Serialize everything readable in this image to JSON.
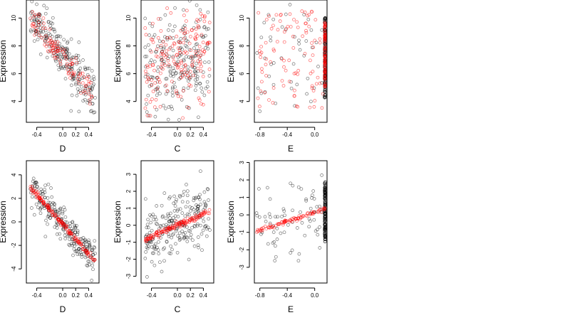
{
  "chart_data": [
    {
      "type": "scatter",
      "xlabel": "D",
      "ylabel": "Expression",
      "xlim": [
        -0.56,
        0.56
      ],
      "ylim": [
        2.5,
        11.3
      ],
      "xticks": [
        -0.4,
        0.0,
        0.2,
        0.4
      ],
      "xtick_labels": [
        "-0.4",
        "0.0",
        "0.2",
        "0.4"
      ],
      "yticks": [
        4,
        6,
        8,
        10
      ],
      "ytick_labels": [
        "4",
        "6",
        "8",
        "10"
      ],
      "series": [
        {
          "color": "#000000",
          "model": {
            "kind": "linear",
            "intercept": 7.3,
            "slope": -6.0,
            "xmin": -0.5,
            "xmax": 0.5,
            "spread": 0.85,
            "n": 240,
            "seed": 11
          }
        },
        {
          "color": "#ff0000",
          "model": {
            "kind": "linear",
            "intercept": 7.2,
            "slope": -5.8,
            "xmin": -0.5,
            "xmax": 0.45,
            "spread": 0.45,
            "n": 110,
            "seed": 12
          }
        }
      ]
    },
    {
      "type": "scatter",
      "xlabel": "C",
      "ylabel": "Expression",
      "xlim": [
        -0.56,
        0.56
      ],
      "ylim": [
        2.5,
        11.3
      ],
      "xticks": [
        -0.4,
        0.0,
        0.2,
        0.4
      ],
      "xtick_labels": [
        "-0.4",
        "0.0",
        "0.2",
        "0.4"
      ],
      "yticks": [
        4,
        6,
        8,
        10
      ],
      "ytick_labels": [
        "4",
        "6",
        "8",
        "10"
      ],
      "series": [
        {
          "color": "#000000",
          "model": {
            "kind": "linear",
            "intercept": 7.0,
            "slope": 1.5,
            "xmin": -0.5,
            "xmax": 0.5,
            "spread": 1.9,
            "n": 220,
            "seed": 21
          }
        },
        {
          "color": "#ff0000",
          "model": {
            "kind": "linear",
            "intercept": 7.0,
            "slope": 1.2,
            "xmin": -0.5,
            "xmax": 0.5,
            "spread": 1.7,
            "n": 180,
            "seed": 22
          }
        }
      ]
    },
    {
      "type": "scatter",
      "xlabel": "E",
      "ylabel": "Expression",
      "xlim": [
        -0.88,
        0.18
      ],
      "ylim": [
        2.5,
        11.3
      ],
      "xticks": [
        -0.8,
        -0.4,
        0.0
      ],
      "xtick_labels": [
        "-0.8",
        "-0.4",
        "0.0"
      ],
      "yticks": [
        4,
        6,
        8,
        10
      ],
      "ytick_labels": [
        "4",
        "6",
        "8",
        "10"
      ],
      "series": [
        {
          "color": "#000000",
          "model": {
            "kind": "cluster",
            "x": 0.15,
            "xjit": 0.006,
            "ymin": 4.2,
            "ymax": 10.1,
            "n": 140,
            "seed": 31
          }
        },
        {
          "color": "#000000",
          "model": {
            "kind": "uniform",
            "xmin": -0.85,
            "xmax": 0.12,
            "ymin": 3.0,
            "ymax": 11.0,
            "n": 45,
            "seed": 32
          }
        },
        {
          "color": "#ff0000",
          "model": {
            "kind": "uniform",
            "xmin": -0.85,
            "xmax": 0.12,
            "ymin": 3.5,
            "ymax": 10.5,
            "n": 95,
            "seed": 33
          }
        },
        {
          "color": "#ff0000",
          "model": {
            "kind": "cluster",
            "x": 0.15,
            "xjit": 0.004,
            "ymin": 5.0,
            "ymax": 9.8,
            "n": 90,
            "seed": 34
          }
        }
      ]
    },
    {
      "type": "scatter",
      "xlabel": "D",
      "ylabel": "Expression",
      "xlim": [
        -0.56,
        0.56
      ],
      "ylim": [
        -5.2,
        5.2
      ],
      "xticks": [
        -0.4,
        0.0,
        0.2,
        0.4
      ],
      "xtick_labels": [
        "-0.4",
        "0.0",
        "0.2",
        "0.4"
      ],
      "yticks": [
        -4,
        -2,
        0,
        2,
        4
      ],
      "ytick_labels": [
        "-4",
        "-2",
        "0",
        "2",
        "4"
      ],
      "series": [
        {
          "color": "#000000",
          "model": {
            "kind": "linear",
            "intercept": -0.2,
            "slope": -6.4,
            "xmin": -0.5,
            "xmax": 0.5,
            "spread": 0.75,
            "n": 240,
            "seed": 41
          }
        },
        {
          "color": "#ff0000",
          "model": {
            "kind": "linear",
            "intercept": -0.2,
            "slope": -6.3,
            "xmin": -0.5,
            "xmax": 0.5,
            "spread": 0.12,
            "n": 150,
            "seed": 42
          }
        }
      ]
    },
    {
      "type": "scatter",
      "xlabel": "C",
      "ylabel": "Expression",
      "xlim": [
        -0.56,
        0.56
      ],
      "ylim": [
        -3.4,
        3.8
      ],
      "xticks": [
        -0.4,
        0.0,
        0.2,
        0.4
      ],
      "xtick_labels": [
        "-0.4",
        "0.0",
        "0.2",
        "0.4"
      ],
      "yticks": [
        -3,
        -2,
        -1,
        0,
        1,
        2,
        3
      ],
      "ytick_labels": [
        "-3",
        "-2",
        "-1",
        "0",
        "1",
        "2",
        "3"
      ],
      "series": [
        {
          "color": "#000000",
          "model": {
            "kind": "linear",
            "intercept": 0.0,
            "slope": 1.7,
            "xmin": -0.5,
            "xmax": 0.5,
            "spread": 0.9,
            "n": 230,
            "seed": 51
          }
        },
        {
          "color": "#ff0000",
          "model": {
            "kind": "linear",
            "intercept": 0.0,
            "slope": 1.7,
            "xmin": -0.5,
            "xmax": 0.5,
            "spread": 0.08,
            "n": 140,
            "seed": 52
          }
        }
      ]
    },
    {
      "type": "scatter",
      "xlabel": "E",
      "ylabel": "Expression",
      "xlim": [
        -0.88,
        0.18
      ],
      "ylim": [
        -3.9,
        3.1
      ],
      "xticks": [
        -0.8,
        -0.4,
        0.0
      ],
      "xtick_labels": [
        "-0.8",
        "-0.4",
        "0.0"
      ],
      "yticks": [
        -3,
        -2,
        -1,
        0,
        1,
        2,
        3
      ],
      "ytick_labels": [
        "-3",
        "-2",
        "-1",
        "0",
        "1",
        "2",
        "3"
      ],
      "series": [
        {
          "color": "#000000",
          "model": {
            "kind": "cluster",
            "x": 0.15,
            "xjit": 0.006,
            "ymin": -1.6,
            "ymax": 1.9,
            "n": 150,
            "seed": 61
          }
        },
        {
          "color": "#000000",
          "model": {
            "kind": "linear",
            "intercept": 0.1,
            "slope": 1.3,
            "xmin": -0.85,
            "xmax": 0.12,
            "spread": 1.2,
            "n": 70,
            "seed": 62
          }
        },
        {
          "color": "#ff0000",
          "model": {
            "kind": "linear",
            "intercept": 0.15,
            "slope": 1.3,
            "xmin": -0.85,
            "xmax": 0.15,
            "spread": 0.05,
            "n": 90,
            "seed": 63
          }
        }
      ]
    }
  ]
}
